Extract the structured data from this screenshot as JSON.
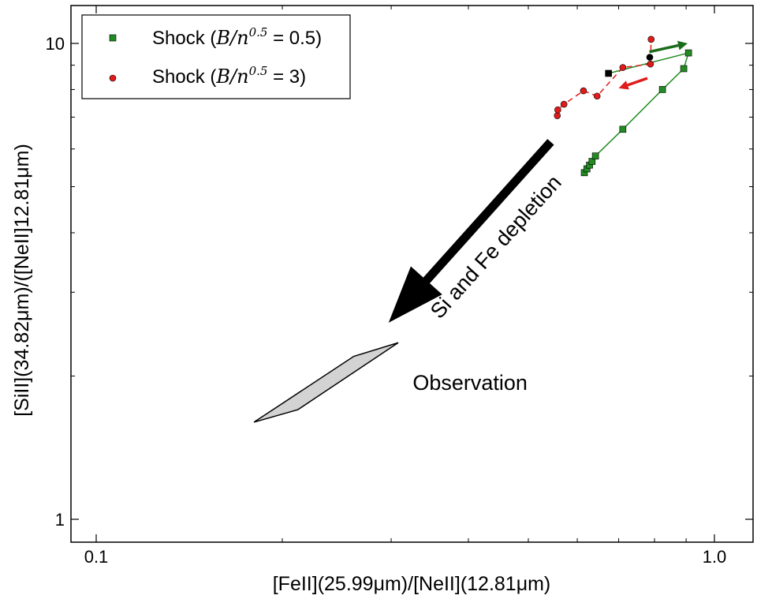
{
  "chart_data": {
    "type": "line",
    "title": "",
    "xlabel": "[FeII](25.99μm)/[NeII](12.81μm)",
    "ylabel": "[SiII](34.82μm)/([NeII]12.81μm)",
    "xscale": "log",
    "yscale": "log",
    "xlim": [
      0.08,
      1.2
    ],
    "ylim": [
      0.85,
      12
    ],
    "x_ticks": [
      0.1,
      1.0
    ],
    "x_tick_labels": [
      "0.1",
      "1.0"
    ],
    "y_ticks": [
      1,
      10
    ],
    "y_tick_labels": [
      "1",
      "10"
    ],
    "grid": false,
    "legend_position": "top-left",
    "series": [
      {
        "name": "Shock (B/n^0.5 = 0.5)",
        "legend_prefix": "Shock (",
        "legend_math": "B/n",
        "legend_exp": "0.5",
        "legend_suffix": " = 0.5)",
        "marker": "square",
        "color": "#228B22",
        "line_style": "solid",
        "x": [
          0.616,
          0.622,
          0.628,
          0.634,
          0.642,
          0.711,
          0.824,
          0.892,
          0.908
        ],
        "y": [
          5.35,
          5.45,
          5.55,
          5.65,
          5.8,
          6.6,
          8.0,
          8.85,
          9.55
        ]
      },
      {
        "name": "Shock (B/n^0.5 = 3)",
        "legend_prefix": "Shock (",
        "legend_math": "B/n",
        "legend_exp": "0.5",
        "legend_suffix": " = 3)",
        "marker": "circle",
        "color": "#e01b1b",
        "line_style": "dashed",
        "x": [
          0.557,
          0.558,
          0.571,
          0.614,
          0.646,
          0.711,
          0.788,
          0.79
        ],
        "y": [
          7.05,
          7.25,
          7.45,
          7.95,
          7.75,
          8.9,
          9.05,
          10.2
        ]
      }
    ],
    "connector": {
      "color": "#228B22",
      "x": [
        0.674,
        0.908
      ],
      "y": [
        8.65,
        9.55
      ]
    },
    "black_points": [
      {
        "marker": "square",
        "x": 0.674,
        "y": 8.65
      },
      {
        "marker": "circle",
        "x": 0.786,
        "y": 9.35
      }
    ],
    "arrows": [
      {
        "color": "#1a6b1a",
        "x": [
          0.785,
          0.905
        ],
        "y": [
          9.6,
          10.0
        ]
      },
      {
        "color": "#e01b1b",
        "x": [
          0.779,
          0.7
        ],
        "y": [
          8.45,
          8.05
        ]
      }
    ],
    "annotations": [
      {
        "text": "Si and Fe depletion",
        "kind": "arrow",
        "x_from": 0.543,
        "y_from": 6.2,
        "x_to": 0.298,
        "y_to": 2.6
      },
      {
        "text": "Observation",
        "kind": "region",
        "x": 0.325,
        "y": 1.93
      }
    ],
    "observation_region": {
      "fill": "#d3d3d3",
      "x": [
        0.18,
        0.261,
        0.308,
        0.212
      ],
      "y": [
        1.6,
        2.2,
        2.35,
        1.7
      ]
    }
  }
}
